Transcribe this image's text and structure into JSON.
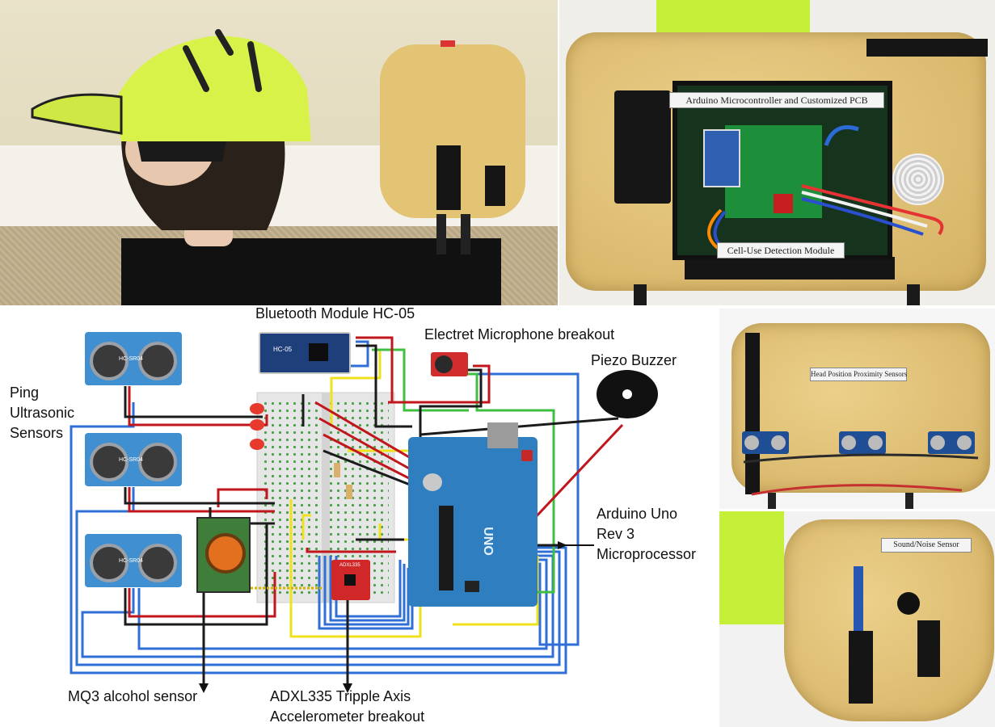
{
  "photos": {
    "top_right_card_top": "Arduino Microcontroller and Customized PCB",
    "top_right_card_bottom": "Cell-Use Detection Module",
    "mid_right_card": "Head Position Proximity Sensors",
    "bottom_right_card": "Sound/Noise Sensor"
  },
  "diagram": {
    "labels": {
      "bluetooth": "Bluetooth Module HC-05",
      "microphone": "Electret Microphone breakout",
      "buzzer": "Piezo Buzzer",
      "ping_line1": "Ping",
      "ping_line2": "Ultrasonic",
      "ping_line3": "Sensors",
      "arduino_line1": "Arduino Uno",
      "arduino_line2": "Rev 3",
      "arduino_line3": "Microprocessor",
      "mq3": "MQ3 alcohol sensor",
      "adxl_line1": "ADXL335 Tripple Axis",
      "adxl_line2": "Accelerometer breakout"
    },
    "chip_text": {
      "hc05": "HC-05",
      "adxl": "ADXL335",
      "uno": "UNO",
      "sonar_model": "HC-SR04"
    }
  },
  "colors": {
    "cap": "#d9f24a",
    "foam": "#e3c374",
    "sonar_board": "#3f8fd1",
    "arduino_board": "#2f7fc0",
    "wire_red": "#c0161c",
    "wire_black": "#1b1b1b",
    "wire_blue": "#2f6fd6",
    "wire_yellow": "#efe11e",
    "wire_green": "#3fbf3f"
  }
}
